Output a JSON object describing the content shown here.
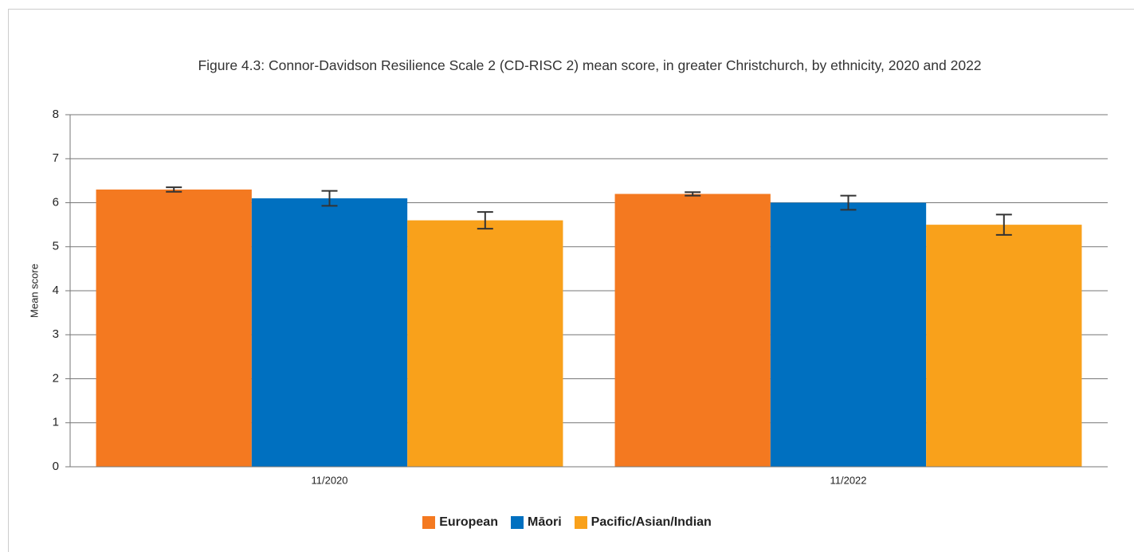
{
  "chart_data": {
    "type": "bar",
    "title": "Figure 4.3: Connor-Davidson Resilience Scale 2 (CD-RISC 2) mean score, in greater Christchurch, by ethnicity, 2020 and 2022",
    "y_label": "Mean score",
    "categories": [
      "11/2020",
      "11/2022"
    ],
    "series": [
      {
        "name": "European",
        "color": "#f47920",
        "values": [
          6.3,
          6.2
        ],
        "errors": [
          0.05,
          0.04
        ]
      },
      {
        "name": "Māori",
        "color": "#0070c0",
        "values": [
          6.1,
          6.0
        ],
        "errors": [
          0.17,
          0.16
        ]
      },
      {
        "name": "Pacific/Asian/Indian",
        "color": "#f9a11b",
        "values": [
          5.6,
          5.5
        ],
        "errors": [
          0.19,
          0.23
        ]
      }
    ],
    "ylim": [
      0,
      8
    ],
    "yticks": [
      0,
      1,
      2,
      3,
      4,
      5,
      6,
      7,
      8
    ],
    "grid": true,
    "legend": "bottom"
  }
}
